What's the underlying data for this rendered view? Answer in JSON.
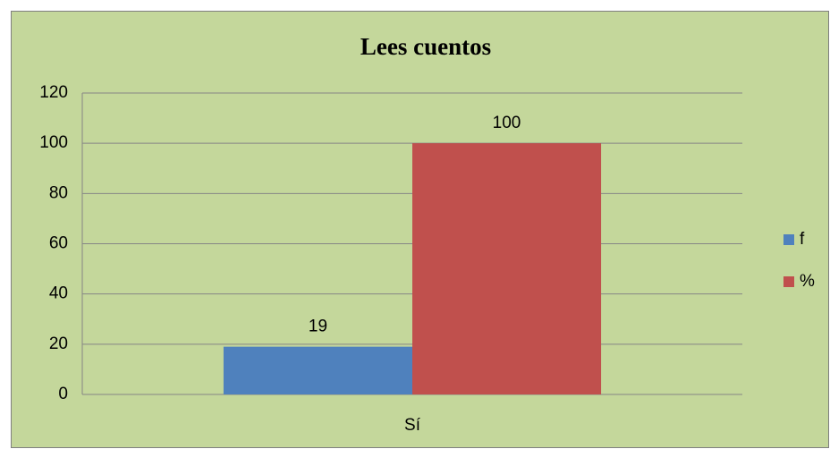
{
  "chart_data": {
    "type": "bar",
    "title": "Lees cuentos",
    "categories": [
      "Sí"
    ],
    "series": [
      {
        "name": "f",
        "color": "#4f81bd",
        "values": [
          19
        ]
      },
      {
        "name": "%",
        "color": "#c0504d",
        "values": [
          100
        ]
      }
    ],
    "ylim": [
      0,
      120
    ],
    "yticks": [
      0,
      20,
      40,
      60,
      80,
      100,
      120
    ],
    "grid": true,
    "legend": "right"
  }
}
